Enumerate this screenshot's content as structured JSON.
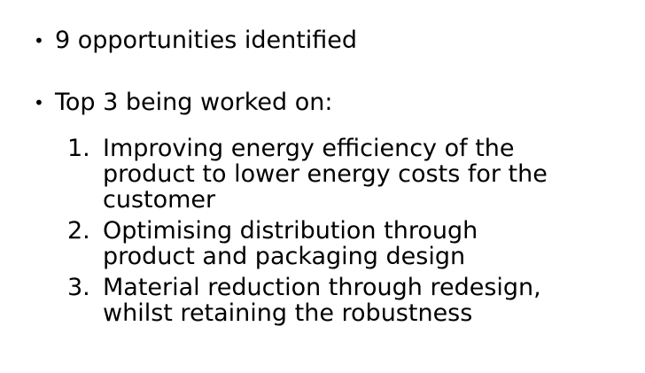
{
  "bullets": [
    {
      "text": "9 opportunities identified"
    },
    {
      "text": "Top 3 being worked on:"
    }
  ],
  "numbered": [
    {
      "num": "1.",
      "lines": [
        "Improving energy efficiency of the",
        "product to lower energy costs for the",
        "customer"
      ]
    },
    {
      "num": "2.",
      "lines": [
        "Optimising distribution through",
        "product and packaging design"
      ]
    },
    {
      "num": "3.",
      "lines": [
        "Material reduction through redesign,",
        "whilst retaining the robustness"
      ]
    }
  ],
  "bullet_glyph": "•"
}
